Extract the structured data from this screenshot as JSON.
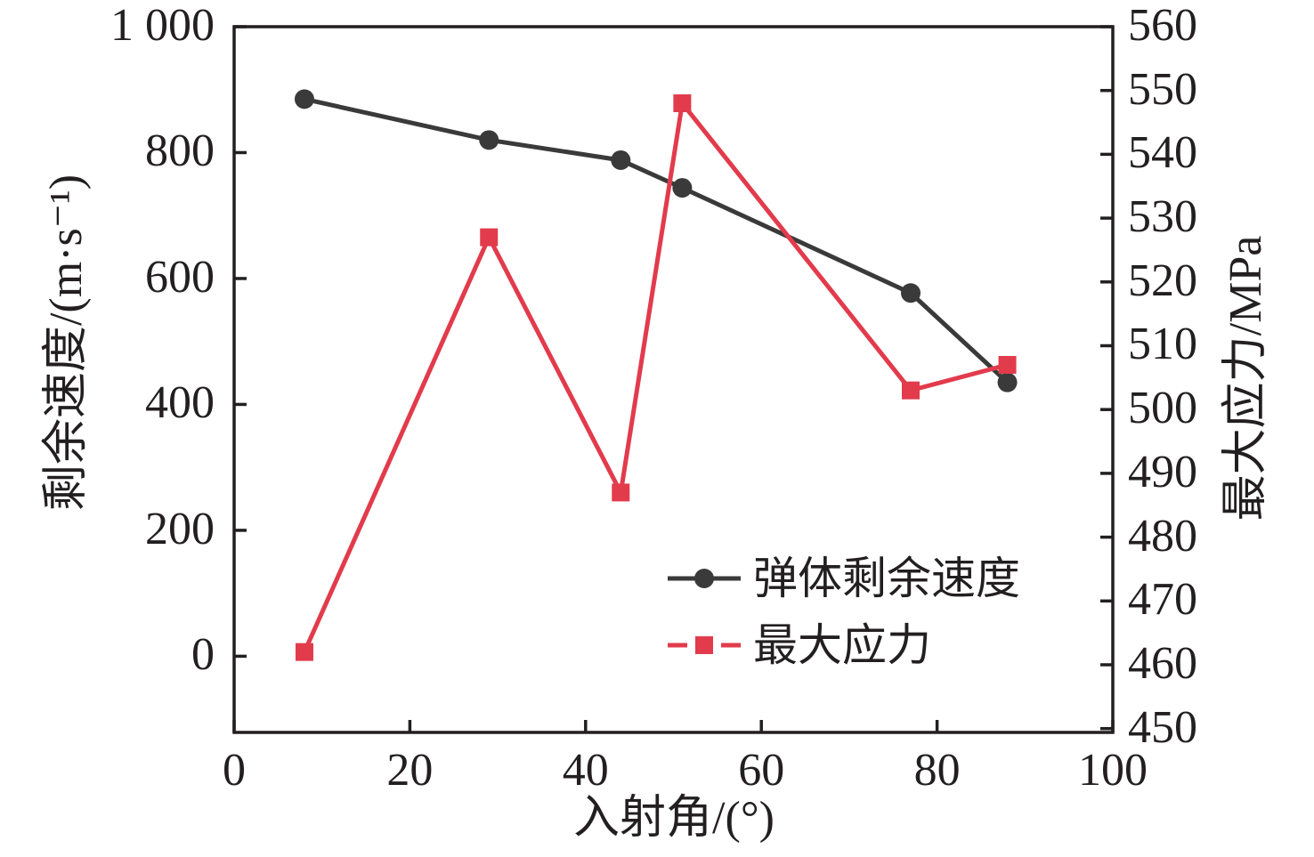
{
  "figure": {
    "background": "#ffffff",
    "frame_color": "#231f20",
    "text_color": "#231f20"
  },
  "chart_data": {
    "type": "line",
    "title": "",
    "xlabel": "入射角/(°)",
    "ylabel_left": "剩余速度/(m·s⁻¹)",
    "ylabel_right": "最大应力/MPa",
    "grid": false,
    "xlim": [
      0,
      100
    ],
    "xticks": {
      "values": [
        0,
        20,
        40,
        60,
        80,
        100
      ],
      "labels": [
        "0",
        "20",
        "40",
        "60",
        "80",
        "100"
      ]
    },
    "ylim_left": [
      -121,
      1000
    ],
    "yticks_left": {
      "values": [
        0,
        200,
        400,
        600,
        800,
        1000
      ],
      "labels": [
        "0",
        "200",
        "400",
        "600",
        "800",
        "1 000"
      ]
    },
    "ylim_right": [
      449.4,
      560
    ],
    "yticks_right": {
      "values": [
        450,
        460,
        470,
        480,
        490,
        500,
        510,
        520,
        530,
        540,
        550,
        560
      ],
      "labels": [
        "450",
        "460",
        "470",
        "480",
        "490",
        "500",
        "510",
        "520",
        "530",
        "540",
        "550",
        "560"
      ]
    },
    "x": [
      8,
      29,
      44,
      51,
      77,
      88
    ],
    "series": [
      {
        "name": "弹体剩余速度",
        "axis": "left",
        "color": "#3a3a3a",
        "marker": "circle",
        "line_style": "solid",
        "values": [
          885,
          820,
          788,
          744,
          577,
          435
        ]
      },
      {
        "name": "最大应力",
        "axis": "right",
        "color": "#e23b4c",
        "marker": "square",
        "line_style": "solid",
        "values": [
          462,
          527,
          487,
          548,
          503,
          507
        ]
      }
    ],
    "legend": {
      "position": "inside-lower-right",
      "items": [
        "弹体剩余速度",
        "最大应力"
      ]
    }
  }
}
